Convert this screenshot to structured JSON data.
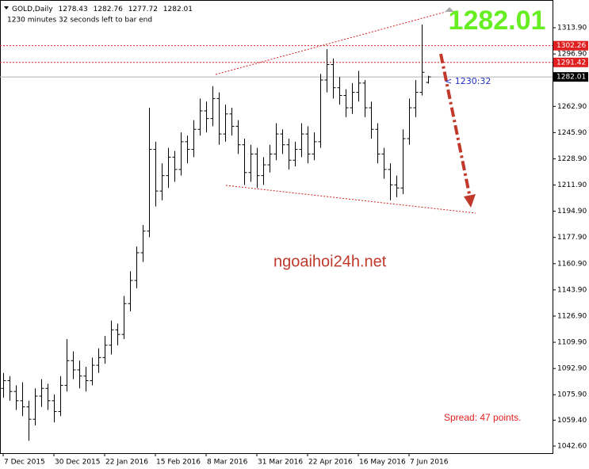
{
  "chart_data": {
    "type": "ohlc",
    "symbol": "GOLD,Daily",
    "countdown": "1230 minutes 32 seconds left to bar end",
    "timer": "< 1230:32",
    "watermark": "ngoaihoi24h.net",
    "spread": "Spread: 47 points.",
    "color": "#000000",
    "ylim": [
      1038,
      1331.9
    ],
    "yticks": [
      1313.9,
      1296.9,
      1262.9,
      1245.9,
      1228.9,
      1211.9,
      1194.9,
      1177.9,
      1160.9,
      1143.9,
      1126.9,
      1109.9,
      1092.9,
      1075.9,
      1059.4,
      1042.6
    ],
    "ytick_labels": [
      "1313.90",
      "1296.90",
      "1262.90",
      "1245.90",
      "1228.90",
      "1211.90",
      "1194.90",
      "1177.90",
      "1160.90",
      "1143.90",
      "1126.90",
      "1109.90",
      "1092.90",
      "1075.90",
      "1059.40",
      "1042.60"
    ],
    "price_lines": [
      {
        "value": 1302.26,
        "color": "#e02020"
      },
      {
        "value": 1291.42,
        "color": "#e02020"
      }
    ],
    "categories": [
      "7 Dec 2015",
      null,
      null,
      null,
      null,
      null,
      null,
      null,
      "30 Dec 2015",
      null,
      null,
      null,
      null,
      null,
      null,
      null,
      "22 Jan 2016",
      null,
      null,
      null,
      null,
      null,
      null,
      null,
      "15 Feb 2016",
      null,
      null,
      null,
      null,
      null,
      null,
      null,
      "8 Mar 2016",
      null,
      null,
      null,
      null,
      null,
      null,
      null,
      "31 Mar 2016",
      null,
      null,
      null,
      null,
      null,
      null,
      null,
      "22 Apr 2016",
      null,
      null,
      null,
      null,
      null,
      null,
      null,
      "16 May 2016",
      null,
      null,
      null,
      null,
      null,
      null,
      null,
      "7 Jun 2016",
      null,
      null,
      null
    ],
    "ohlc": [
      [
        1080,
        1090,
        1074,
        1085
      ],
      [
        1085,
        1088,
        1072,
        1078
      ],
      [
        1078,
        1082,
        1066,
        1072
      ],
      [
        1072,
        1084,
        1062,
        1068
      ],
      [
        1068,
        1072,
        1046,
        1060
      ],
      [
        1060,
        1080,
        1056,
        1075
      ],
      [
        1075,
        1086,
        1068,
        1080
      ],
      [
        1080,
        1083,
        1066,
        1072
      ],
      [
        1072,
        1076,
        1058,
        1065
      ],
      [
        1065,
        1088,
        1062,
        1082
      ],
      [
        1082,
        1112,
        1078,
        1098
      ],
      [
        1098,
        1104,
        1086,
        1092
      ],
      [
        1092,
        1098,
        1080,
        1088
      ],
      [
        1088,
        1094,
        1078,
        1085
      ],
      [
        1085,
        1100,
        1082,
        1095
      ],
      [
        1095,
        1106,
        1090,
        1100
      ],
      [
        1100,
        1114,
        1096,
        1108
      ],
      [
        1108,
        1124,
        1102,
        1118
      ],
      [
        1118,
        1122,
        1108,
        1115
      ],
      [
        1115,
        1140,
        1112,
        1135
      ],
      [
        1135,
        1156,
        1130,
        1150
      ],
      [
        1150,
        1172,
        1145,
        1168
      ],
      [
        1168,
        1186,
        1162,
        1182
      ],
      [
        1182,
        1262,
        1178,
        1235
      ],
      [
        1235,
        1240,
        1198,
        1208
      ],
      [
        1208,
        1226,
        1202,
        1218
      ],
      [
        1218,
        1236,
        1210,
        1230
      ],
      [
        1230,
        1234,
        1214,
        1222
      ],
      [
        1222,
        1246,
        1218,
        1240
      ],
      [
        1240,
        1244,
        1226,
        1235
      ],
      [
        1235,
        1254,
        1230,
        1248
      ],
      [
        1248,
        1268,
        1244,
        1260
      ],
      [
        1260,
        1266,
        1246,
        1255
      ],
      [
        1255,
        1276,
        1250,
        1268
      ],
      [
        1268,
        1272,
        1238,
        1245
      ],
      [
        1245,
        1264,
        1240,
        1258
      ],
      [
        1258,
        1262,
        1244,
        1250
      ],
      [
        1250,
        1254,
        1232,
        1238
      ],
      [
        1238,
        1242,
        1212,
        1220
      ],
      [
        1220,
        1238,
        1214,
        1232
      ],
      [
        1232,
        1236,
        1210,
        1218
      ],
      [
        1218,
        1230,
        1212,
        1225
      ],
      [
        1225,
        1238,
        1220,
        1232
      ],
      [
        1232,
        1252,
        1228,
        1245
      ],
      [
        1245,
        1248,
        1232,
        1238
      ],
      [
        1238,
        1242,
        1222,
        1228
      ],
      [
        1228,
        1240,
        1224,
        1235
      ],
      [
        1235,
        1252,
        1230,
        1245
      ],
      [
        1245,
        1250,
        1226,
        1232
      ],
      [
        1232,
        1246,
        1228,
        1240
      ],
      [
        1240,
        1284,
        1236,
        1280
      ],
      [
        1280,
        1300,
        1272,
        1290
      ],
      [
        1290,
        1294,
        1268,
        1275
      ],
      [
        1275,
        1282,
        1264,
        1270
      ],
      [
        1270,
        1274,
        1256,
        1262
      ],
      [
        1262,
        1278,
        1258,
        1272
      ],
      [
        1272,
        1286,
        1266,
        1278
      ],
      [
        1278,
        1280,
        1256,
        1262
      ],
      [
        1262,
        1266,
        1242,
        1248
      ],
      [
        1248,
        1252,
        1226,
        1232
      ],
      [
        1232,
        1236,
        1216,
        1222
      ],
      [
        1222,
        1226,
        1202,
        1212
      ],
      [
        1212,
        1218,
        1204,
        1210
      ],
      [
        1210,
        1248,
        1206,
        1242
      ],
      [
        1242,
        1268,
        1238,
        1262
      ],
      [
        1262,
        1280,
        1256,
        1272
      ],
      [
        1272,
        1316,
        1270,
        1285
      ],
      [
        1278.43,
        1282.76,
        1277.72,
        1282.01
      ]
    ]
  }
}
